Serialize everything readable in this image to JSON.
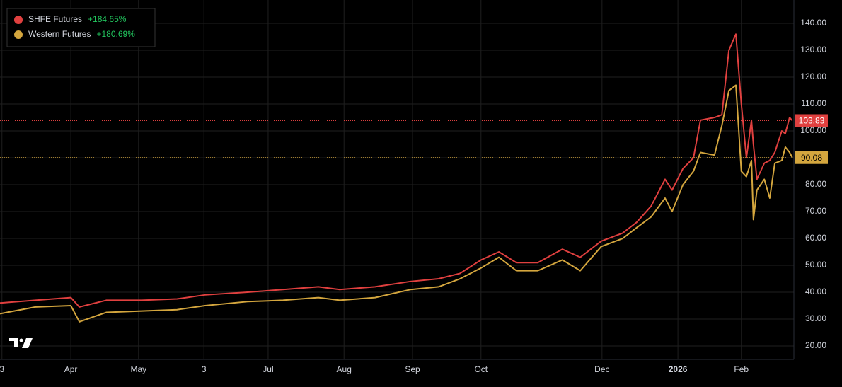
{
  "chart_data": {
    "type": "line",
    "x": [
      0,
      9.1,
      18.2,
      20.4,
      27.3,
      36.4,
      45.5,
      52.7,
      63.6,
      72.7,
      81.8,
      87.3,
      96.4,
      105.5,
      112.7,
      118.2,
      123.6,
      128.2,
      132.7,
      138.2,
      144.5,
      149.1,
      154.5,
      160,
      163.6,
      167.3,
      170.9,
      172.7,
      175.5,
      178.2,
      180,
      183.6,
      185.5,
      187.3,
      189.1,
      190.5,
      191.8,
      193.1,
      193.6,
      194.5,
      196.4,
      197.8,
      199.1,
      200.9,
      201.8,
      202.9,
      203.6
    ],
    "series": [
      {
        "name": "SHFE Futures",
        "change": "+184.65%",
        "color": "#e0403f",
        "values": [
          36,
          37,
          38,
          34.5,
          37,
          37,
          37.5,
          39,
          40,
          41,
          42,
          41,
          42,
          44,
          45,
          47,
          52,
          55,
          51,
          51,
          56,
          53,
          59,
          62,
          66,
          72,
          82,
          78,
          86,
          90,
          104,
          105,
          106,
          130,
          136,
          110,
          90,
          104,
          95,
          82,
          88,
          89,
          92,
          100,
          99,
          105,
          103.83
        ]
      },
      {
        "name": "Western Futures",
        "change": "+180.69%",
        "color": "#d4a63e",
        "values": [
          32,
          34.5,
          35,
          29,
          32.5,
          33,
          33.5,
          35,
          36.5,
          37,
          38,
          37,
          38,
          41,
          42,
          45,
          49,
          53,
          48,
          48,
          52,
          48,
          57,
          60,
          64,
          68,
          75,
          70,
          80,
          85,
          92,
          91,
          102,
          115,
          117,
          85,
          83,
          89,
          67,
          78,
          82,
          75,
          88,
          89,
          94,
          92,
          90.08
        ]
      }
    ],
    "xlim": [
      0,
      204
    ],
    "xticks": [
      {
        "value": 0.5,
        "label": "3"
      },
      {
        "value": 18.2,
        "label": "Apr"
      },
      {
        "value": 35.6,
        "label": "May"
      },
      {
        "value": 52.4,
        "label": "3"
      },
      {
        "value": 68.9,
        "label": "Jul"
      },
      {
        "value": 88.4,
        "label": "Aug"
      },
      {
        "value": 106,
        "label": "Sep"
      },
      {
        "value": 123.6,
        "label": "Oct"
      },
      {
        "value": 154.7,
        "label": "Dec"
      },
      {
        "value": 174.2,
        "label": "2026"
      },
      {
        "value": 190.5,
        "label": "Feb"
      }
    ],
    "ylim": [
      15,
      148.7
    ],
    "yticks": [
      {
        "value": 20,
        "label": "20.00"
      },
      {
        "value": 30,
        "label": "30.00"
      },
      {
        "value": 40,
        "label": "40.00"
      },
      {
        "value": 50,
        "label": "50.00"
      },
      {
        "value": 60,
        "label": "60.00"
      },
      {
        "value": 70,
        "label": "70.00"
      },
      {
        "value": 80,
        "label": "80.00"
      },
      {
        "value": 90,
        "label": "90.00"
      },
      {
        "value": 100,
        "label": "100.00"
      },
      {
        "value": 110,
        "label": "110.00"
      },
      {
        "value": 120,
        "label": "120.00"
      },
      {
        "value": 130,
        "label": "130.00"
      },
      {
        "value": 140,
        "label": "140.00"
      }
    ],
    "grid": true
  }
}
